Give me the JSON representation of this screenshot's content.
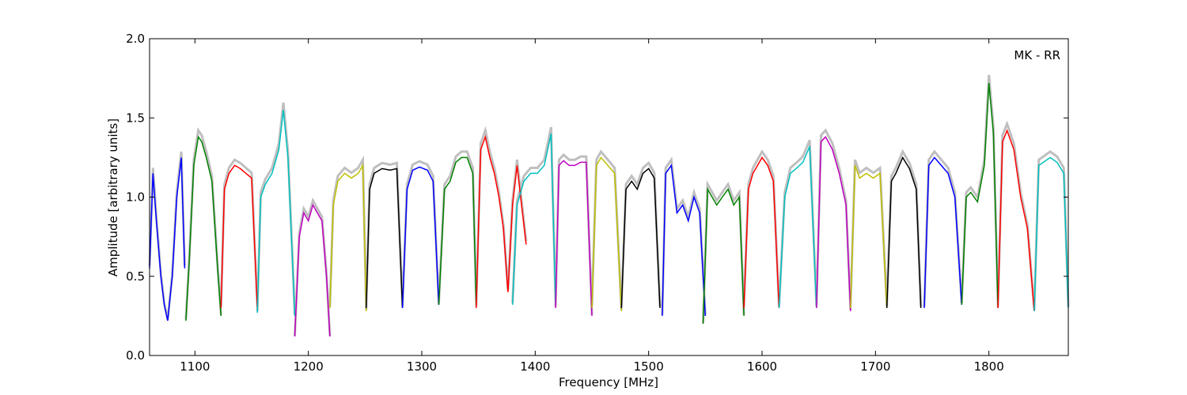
{
  "chart_data": {
    "type": "line",
    "title": "",
    "xlabel": "Frequency [MHz]",
    "ylabel": "Amplitude [arbitrary units]",
    "xlim": [
      1060,
      1870
    ],
    "ylim": [
      0.0,
      2.0
    ],
    "x_ticks": [
      "1100",
      "1200",
      "1300",
      "1400",
      "1500",
      "1600",
      "1700",
      "1800"
    ],
    "x_tick_values": [
      1100,
      1200,
      1300,
      1400,
      1500,
      1600,
      1700,
      1800
    ],
    "y_ticks": [
      "0.0",
      "0.5",
      "1.0",
      "1.5",
      "2.0"
    ],
    "y_tick_values": [
      0.0,
      0.5,
      1.0,
      1.5,
      2.0
    ],
    "grid": false,
    "annotation": "MK - RR",
    "gray_color": "#bfbfbf",
    "series": [
      {
        "color": "#0000ff",
        "x": [
          1060,
          1063,
          1066,
          1070,
          1073,
          1076,
          1080,
          1084,
          1088,
          1091
        ],
        "y": [
          0.55,
          1.15,
          0.85,
          0.5,
          0.32,
          0.22,
          0.5,
          1.0,
          1.25,
          0.55
        ]
      },
      {
        "color": "#008000",
        "x": [
          1092,
          1095,
          1099,
          1103,
          1106,
          1110,
          1115,
          1120,
          1123
        ],
        "y": [
          0.22,
          0.6,
          1.2,
          1.38,
          1.35,
          1.25,
          1.1,
          0.55,
          0.25
        ]
      },
      {
        "color": "#ff0000",
        "x": [
          1123,
          1126,
          1130,
          1135,
          1140,
          1145,
          1150,
          1155
        ],
        "y": [
          0.3,
          1.05,
          1.15,
          1.2,
          1.18,
          1.15,
          1.12,
          0.3
        ]
      },
      {
        "color": "#00bfbf",
        "x": [
          1155,
          1158,
          1162,
          1168,
          1174,
          1178,
          1182,
          1186,
          1188
        ],
        "y": [
          0.27,
          1.0,
          1.08,
          1.15,
          1.3,
          1.55,
          1.25,
          0.6,
          0.25
        ]
      },
      {
        "color": "#bf00bf",
        "x": [
          1188,
          1192,
          1196,
          1200,
          1204,
          1208,
          1212,
          1216,
          1219
        ],
        "y": [
          0.12,
          0.75,
          0.9,
          0.85,
          0.95,
          0.9,
          0.85,
          0.5,
          0.12
        ]
      },
      {
        "color": "#bfbf00",
        "x": [
          1219,
          1222,
          1226,
          1232,
          1238,
          1244,
          1248,
          1251
        ],
        "y": [
          0.3,
          0.95,
          1.1,
          1.15,
          1.12,
          1.15,
          1.2,
          0.28
        ]
      },
      {
        "color": "#000000",
        "x": [
          1251,
          1254,
          1258,
          1265,
          1272,
          1278,
          1283
        ],
        "y": [
          0.3,
          1.05,
          1.15,
          1.18,
          1.17,
          1.18,
          0.3
        ]
      },
      {
        "color": "#0000ff",
        "x": [
          1283,
          1287,
          1292,
          1298,
          1305,
          1310,
          1315
        ],
        "y": [
          0.3,
          1.05,
          1.17,
          1.19,
          1.17,
          1.1,
          0.32
        ]
      },
      {
        "color": "#008000",
        "x": [
          1315,
          1320,
          1325,
          1330,
          1335,
          1340,
          1345,
          1348
        ],
        "y": [
          0.32,
          1.05,
          1.1,
          1.22,
          1.25,
          1.25,
          1.15,
          0.32
        ]
      },
      {
        "color": "#ff0000",
        "x": [
          1348,
          1352,
          1356,
          1360,
          1364,
          1368,
          1372,
          1376,
          1380,
          1384,
          1388,
          1392
        ],
        "y": [
          0.3,
          1.3,
          1.38,
          1.25,
          1.15,
          1.0,
          0.8,
          0.4,
          0.95,
          1.2,
          0.95,
          0.7
        ]
      },
      {
        "color": "#00bfbf",
        "x": [
          1380,
          1384,
          1390,
          1396,
          1402,
          1408,
          1414,
          1418
        ],
        "y": [
          0.32,
          0.95,
          1.1,
          1.15,
          1.15,
          1.2,
          1.4,
          0.32
        ]
      },
      {
        "color": "#bf00bf",
        "x": [
          1418,
          1421,
          1425,
          1430,
          1435,
          1440,
          1445,
          1450
        ],
        "y": [
          0.3,
          1.2,
          1.23,
          1.2,
          1.2,
          1.22,
          1.22,
          0.25
        ]
      },
      {
        "color": "#bfbf00",
        "x": [
          1450,
          1454,
          1458,
          1464,
          1470,
          1476
        ],
        "y": [
          0.3,
          1.2,
          1.25,
          1.2,
          1.15,
          0.28
        ]
      },
      {
        "color": "#000000",
        "x": [
          1476,
          1480,
          1485,
          1490,
          1495,
          1500,
          1505,
          1510
        ],
        "y": [
          0.3,
          1.05,
          1.1,
          1.05,
          1.15,
          1.18,
          1.12,
          0.3
        ]
      },
      {
        "color": "#0000ff",
        "x": [
          1512,
          1515,
          1520,
          1525,
          1530,
          1535,
          1540,
          1545,
          1550
        ],
        "y": [
          0.25,
          1.15,
          1.2,
          0.9,
          0.95,
          0.85,
          1.0,
          0.9,
          0.25
        ]
      },
      {
        "color": "#008000",
        "x": [
          1548,
          1552,
          1556,
          1560,
          1565,
          1570,
          1575,
          1580,
          1584
        ],
        "y": [
          0.2,
          1.05,
          1.0,
          0.95,
          1.0,
          1.05,
          0.95,
          1.0,
          0.25
        ]
      },
      {
        "color": "#ff0000",
        "x": [
          1584,
          1588,
          1592,
          1596,
          1600,
          1605,
          1610,
          1615
        ],
        "y": [
          0.3,
          1.05,
          1.15,
          1.2,
          1.25,
          1.2,
          1.1,
          0.3
        ]
      },
      {
        "color": "#00bfbf",
        "x": [
          1615,
          1620,
          1625,
          1630,
          1636,
          1642,
          1648
        ],
        "y": [
          0.3,
          1.0,
          1.15,
          1.18,
          1.22,
          1.32,
          0.3
        ]
      },
      {
        "color": "#bf00bf",
        "x": [
          1648,
          1652,
          1656,
          1662,
          1668,
          1674,
          1678
        ],
        "y": [
          0.3,
          1.35,
          1.38,
          1.3,
          1.15,
          0.95,
          0.28
        ]
      },
      {
        "color": "#bfbf00",
        "x": [
          1678,
          1682,
          1686,
          1692,
          1698,
          1704,
          1710
        ],
        "y": [
          0.3,
          1.2,
          1.12,
          1.15,
          1.12,
          1.15,
          0.3
        ]
      },
      {
        "color": "#000000",
        "x": [
          1710,
          1714,
          1718,
          1724,
          1730,
          1736,
          1740
        ],
        "y": [
          0.3,
          1.1,
          1.15,
          1.25,
          1.18,
          1.05,
          0.3
        ]
      },
      {
        "color": "#0000ff",
        "x": [
          1743,
          1747,
          1752,
          1758,
          1764,
          1770,
          1776
        ],
        "y": [
          0.3,
          1.2,
          1.25,
          1.2,
          1.15,
          1.0,
          0.32
        ]
      },
      {
        "color": "#008000",
        "x": [
          1776,
          1780,
          1784,
          1790,
          1796,
          1800,
          1804,
          1808
        ],
        "y": [
          0.32,
          1.0,
          1.03,
          0.97,
          1.2,
          1.72,
          1.4,
          0.3
        ]
      },
      {
        "color": "#ff0000",
        "x": [
          1808,
          1812,
          1816,
          1822,
          1828,
          1834,
          1840
        ],
        "y": [
          0.3,
          1.35,
          1.42,
          1.3,
          1.0,
          0.8,
          0.28
        ]
      },
      {
        "color": "#00bfbf",
        "x": [
          1840,
          1844,
          1848,
          1854,
          1860,
          1866,
          1870
        ],
        "y": [
          0.28,
          1.2,
          1.22,
          1.25,
          1.22,
          1.15,
          0.3
        ]
      }
    ]
  }
}
